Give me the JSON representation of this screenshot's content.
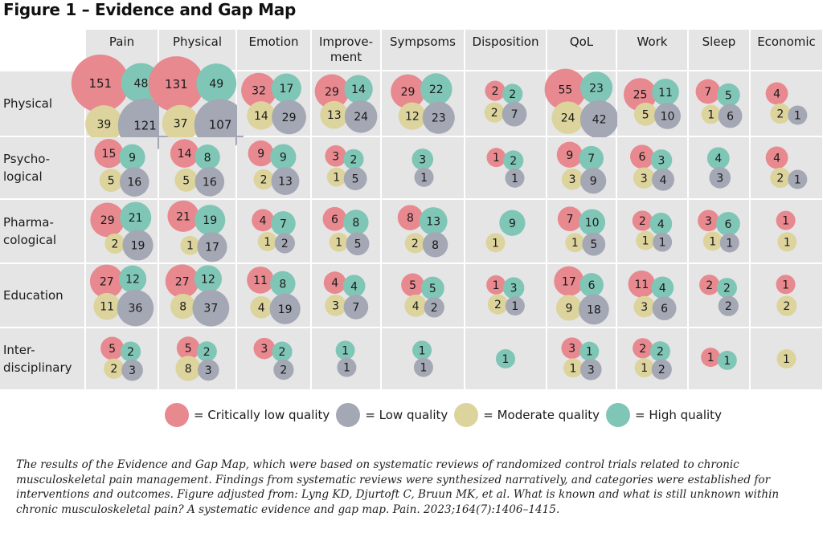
{
  "figure": {
    "title": "Figure 1 – Evidence and Gap Map"
  },
  "colors": {
    "critically_low": "#e8888f",
    "low": "#a4a7b4",
    "moderate": "#dcd49c",
    "high": "#7fc6b7",
    "cell_bg": "#e5e5e5",
    "grid_line": "#ffffff",
    "caption_marker": "#e0555f"
  },
  "chart_data": {
    "type": "bubble-matrix",
    "title": "Figure 1 – Evidence and Gap Map",
    "columns": [
      "Pain",
      "Physical",
      "Emotion",
      "Improve-\nment",
      "Sympsoms",
      "Disposition",
      "QoL",
      "Work",
      "Sleep",
      "Economic"
    ],
    "rows": [
      "Physical",
      "Psycho-\nlogical",
      "Pharma-\ncological",
      "Education",
      "Inter-\ndisciplinary"
    ],
    "series_keys": [
      "critically_low",
      "high",
      "moderate",
      "low"
    ],
    "cells": [
      [
        {
          "critically_low": 151,
          "high": 48,
          "moderate": 39,
          "low": 121
        },
        {
          "critically_low": 131,
          "high": 49,
          "moderate": 37,
          "low": 107
        },
        {
          "critically_low": 32,
          "high": 17,
          "moderate": 14,
          "low": 29
        },
        {
          "critically_low": 29,
          "high": 14,
          "moderate": 13,
          "low": 24
        },
        {
          "critically_low": 29,
          "high": 22,
          "moderate": 12,
          "low": 23
        },
        {
          "critically_low": 2,
          "high": 2,
          "moderate": 2,
          "low": 7
        },
        {
          "critically_low": 55,
          "high": 23,
          "moderate": 24,
          "low": 42
        },
        {
          "critically_low": 25,
          "high": 11,
          "moderate": 5,
          "low": 10
        },
        {
          "critically_low": 7,
          "high": 5,
          "moderate": 1,
          "low": 6
        },
        {
          "critically_low": 4,
          "high": null,
          "moderate": 2,
          "low": 1
        }
      ],
      [
        {
          "critically_low": 15,
          "high": 9,
          "moderate": 5,
          "low": 16
        },
        {
          "critically_low": 14,
          "high": 8,
          "moderate": 5,
          "low": 16
        },
        {
          "critically_low": 9,
          "high": 9,
          "moderate": 2,
          "low": 13
        },
        {
          "critically_low": 3,
          "high": 2,
          "moderate": 1,
          "low": 5
        },
        {
          "critically_low": null,
          "high": 3,
          "moderate": null,
          "low": 1
        },
        {
          "critically_low": 1,
          "high": 2,
          "moderate": null,
          "low": 1
        },
        {
          "critically_low": 9,
          "high": 7,
          "moderate": 3,
          "low": 9
        },
        {
          "critically_low": 6,
          "high": 3,
          "moderate": 3,
          "low": 4
        },
        {
          "critically_low": null,
          "high": 4,
          "moderate": null,
          "low": 3
        },
        {
          "critically_low": 4,
          "high": null,
          "moderate": 2,
          "low": 1
        }
      ],
      [
        {
          "critically_low": 29,
          "high": 21,
          "moderate": 2,
          "low": 19
        },
        {
          "critically_low": 21,
          "high": 19,
          "moderate": 1,
          "low": 17
        },
        {
          "critically_low": 4,
          "high": 7,
          "moderate": 1,
          "low": 2
        },
        {
          "critically_low": 6,
          "high": 8,
          "moderate": 1,
          "low": 5
        },
        {
          "critically_low": 8,
          "high": 13,
          "moderate": 2,
          "low": 8
        },
        {
          "critically_low": null,
          "high": 9,
          "moderate": 1,
          "low": null
        },
        {
          "critically_low": 7,
          "high": 10,
          "moderate": 1,
          "low": 5
        },
        {
          "critically_low": 2,
          "high": 4,
          "moderate": 1,
          "low": 1
        },
        {
          "critically_low": 3,
          "high": 6,
          "moderate": 1,
          "low": 1
        },
        {
          "critically_low": 1,
          "high": null,
          "moderate": 1,
          "low": null
        }
      ],
      [
        {
          "critically_low": 27,
          "high": 12,
          "moderate": 11,
          "low": 36
        },
        {
          "critically_low": 27,
          "high": 12,
          "moderate": 8,
          "low": 37
        },
        {
          "critically_low": 11,
          "high": 8,
          "moderate": 4,
          "low": 19
        },
        {
          "critically_low": 4,
          "high": 4,
          "moderate": 3,
          "low": 7
        },
        {
          "critically_low": 5,
          "high": 5,
          "moderate": 4,
          "low": 2
        },
        {
          "critically_low": 1,
          "high": 3,
          "moderate": 2,
          "low": 1
        },
        {
          "critically_low": 17,
          "high": 6,
          "moderate": 9,
          "low": 18
        },
        {
          "critically_low": 11,
          "high": 4,
          "moderate": 3,
          "low": 6
        },
        {
          "critically_low": 2,
          "high": 2,
          "moderate": null,
          "low": 2
        },
        {
          "critically_low": 1,
          "high": null,
          "moderate": 2,
          "low": null
        }
      ],
      [
        {
          "critically_low": 5,
          "high": 2,
          "moderate": 2,
          "low": 3
        },
        {
          "critically_low": 5,
          "high": 2,
          "moderate": 8,
          "low": 3
        },
        {
          "critically_low": 3,
          "high": 2,
          "moderate": null,
          "low": 2
        },
        {
          "critically_low": null,
          "high": 1,
          "moderate": null,
          "low": 1
        },
        {
          "critically_low": null,
          "high": 1,
          "moderate": null,
          "low": 1
        },
        {
          "critically_low": null,
          "high": 1,
          "moderate": null,
          "low": null
        },
        {
          "critically_low": 3,
          "high": 1,
          "moderate": 1,
          "low": 3
        },
        {
          "critically_low": 2,
          "high": 2,
          "moderate": 1,
          "low": 2
        },
        {
          "critically_low": 1,
          "high": 1,
          "moderate": null,
          "low": null
        },
        {
          "critically_low": null,
          "high": null,
          "moderate": 1,
          "low": null
        }
      ]
    ],
    "legend": [
      {
        "key": "critically_low",
        "label": "= Critically low quality"
      },
      {
        "key": "low",
        "label": "= Low quality"
      },
      {
        "key": "moderate",
        "label": "= Moderate quality"
      },
      {
        "key": "high",
        "label": "= High quality"
      }
    ],
    "legend_position": "bottom-center"
  },
  "caption": "The results of the Evidence and Gap Map, which were based on systematic reviews of randomized control trials related to chronic musculoskeletal pain management. Findings from systematic reviews were synthesized narratively, and categories were established for interventions and outcomes. Figure adjusted from: Lyng KD, Djurtoft C, Bruun MK, et al. What is known and what is still unknown within chronic musculoskeletal pain? A systematic evidence and gap map. Pain. 2023;164(7):1406–1415."
}
